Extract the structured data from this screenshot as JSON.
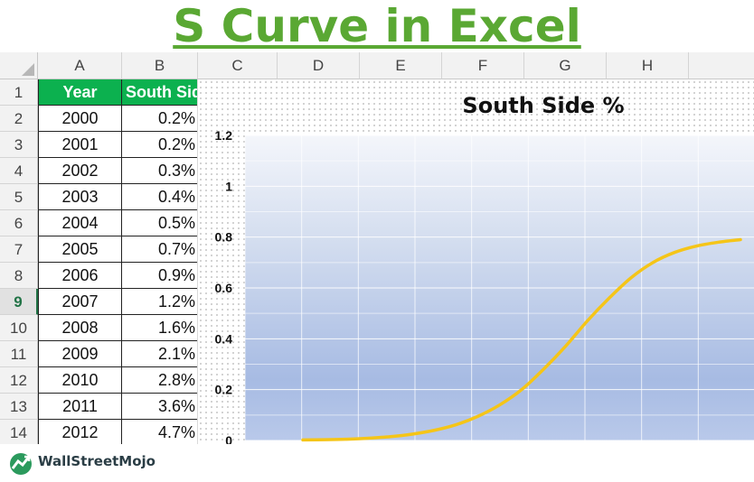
{
  "page_title": "S Curve in Excel",
  "columns": [
    "A",
    "B",
    "C",
    "D",
    "E",
    "F",
    "G",
    "H"
  ],
  "rows": [
    "1",
    "2",
    "3",
    "4",
    "5",
    "6",
    "7",
    "8",
    "9",
    "10",
    "11",
    "12",
    "13",
    "14"
  ],
  "selected_row": "9",
  "table": {
    "header": {
      "a": "Year",
      "b": "South Side %"
    },
    "data": [
      {
        "a": "2000",
        "b": "0.2%"
      },
      {
        "a": "2001",
        "b": "0.2%"
      },
      {
        "a": "2002",
        "b": "0.3%"
      },
      {
        "a": "2003",
        "b": "0.4%"
      },
      {
        "a": "2004",
        "b": "0.5%"
      },
      {
        "a": "2005",
        "b": "0.7%"
      },
      {
        "a": "2006",
        "b": "0.9%"
      },
      {
        "a": "2007",
        "b": "1.2%"
      },
      {
        "a": "2008",
        "b": "1.6%"
      },
      {
        "a": "2009",
        "b": "2.1%"
      },
      {
        "a": "2010",
        "b": "2.8%"
      },
      {
        "a": "2011",
        "b": "3.6%"
      },
      {
        "a": "2012",
        "b": "4.7%"
      }
    ]
  },
  "chart_data": {
    "type": "line",
    "title": "South Side %",
    "xlabel": "",
    "ylabel": "",
    "ylim": [
      0,
      1.2
    ],
    "yticks": [
      "0",
      "0.2",
      "0.4",
      "0.6",
      "0.8",
      "1",
      "1.2"
    ],
    "x": [
      1,
      2,
      3,
      4,
      5,
      6,
      7,
      8,
      9,
      10,
      11,
      12,
      13,
      14,
      15,
      16,
      17,
      18,
      19,
      20,
      21
    ],
    "series": [
      {
        "name": "",
        "color": "#f5c518",
        "values": [
          0.002,
          0.003,
          0.005,
          0.009,
          0.015,
          0.025,
          0.04,
          0.062,
          0.095,
          0.14,
          0.2,
          0.28,
          0.37,
          0.47,
          0.56,
          0.64,
          0.7,
          0.74,
          0.765,
          0.78,
          0.79
        ]
      }
    ],
    "grid": true,
    "background": "gradient-blue"
  },
  "branding": {
    "logo_text": "WallStreetMojo"
  },
  "colors": {
    "title": "#5aa833",
    "header_fill": "#0cb14f",
    "line": "#f5c518",
    "selected_row": "#217346"
  }
}
